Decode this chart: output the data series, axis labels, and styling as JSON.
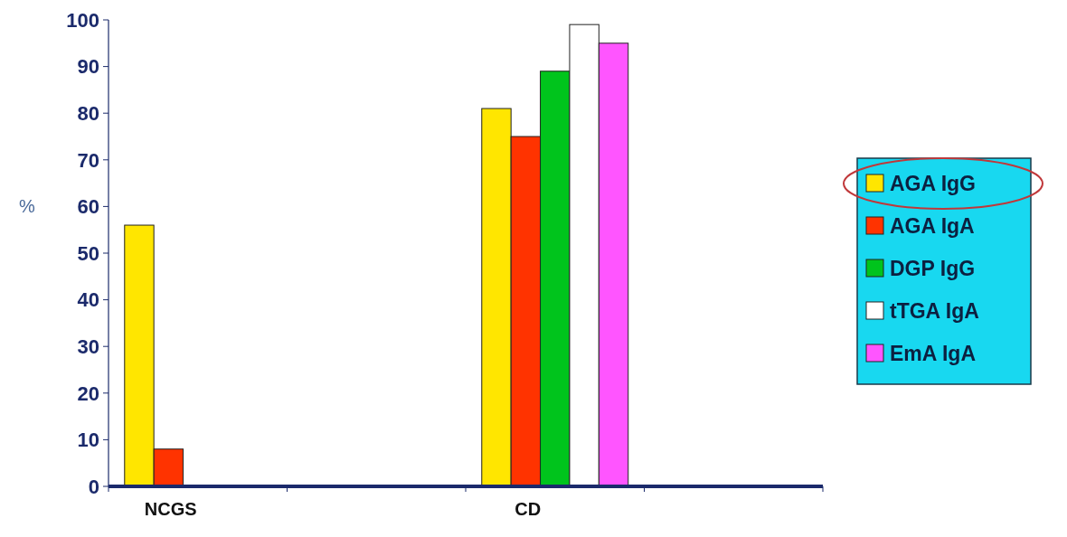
{
  "chart_data": {
    "type": "bar",
    "categories": [
      "NCGS",
      null,
      "CD",
      null
    ],
    "ylabel": "%",
    "ylim": [
      0,
      100
    ],
    "yticks": [
      0,
      10,
      20,
      30,
      40,
      50,
      60,
      70,
      80,
      90,
      100
    ],
    "legend": "right",
    "grid": false,
    "series": [
      {
        "name": "AGA IgG",
        "color": "#ffe600",
        "values": [
          56,
          null,
          81,
          null
        ]
      },
      {
        "name": "AGA IgA",
        "color": "#ff3300",
        "values": [
          8,
          null,
          75,
          null
        ]
      },
      {
        "name": "DGP IgG",
        "color": "#00c41c",
        "values": [
          0,
          null,
          89,
          null
        ]
      },
      {
        "name": "tTGA IgA",
        "color": "#ffffff",
        "values": [
          0,
          null,
          99,
          null
        ]
      },
      {
        "name": "EmA IgA",
        "color": "#ff55ff",
        "values": [
          0,
          null,
          95,
          null
        ]
      }
    ]
  }
}
